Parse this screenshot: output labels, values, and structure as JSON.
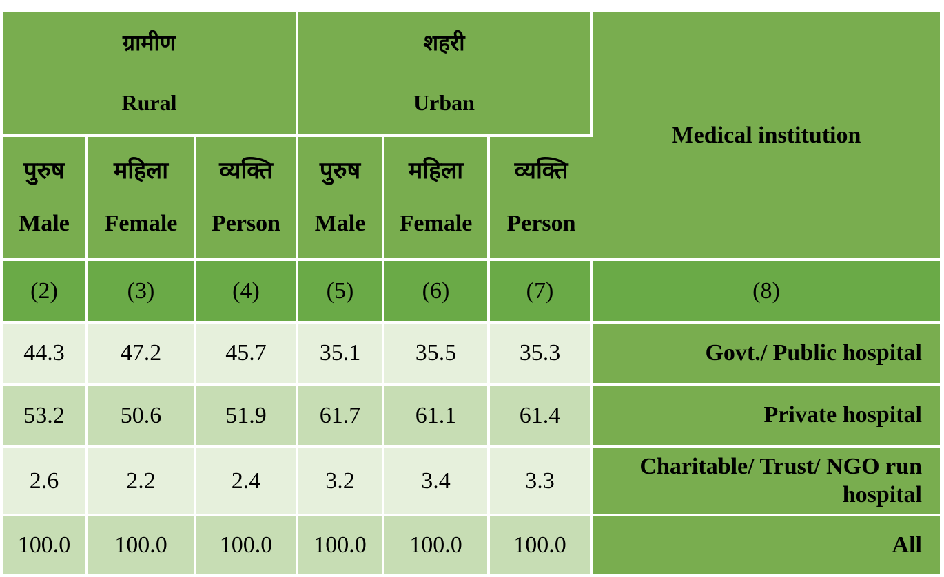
{
  "header": {
    "rural_hi": "ग्रामीण",
    "rural_en": "Rural",
    "urban_hi": "शहरी",
    "urban_en": "Urban",
    "institution": "Medical institution",
    "male_hi": "पुरुष",
    "male_en": "Male",
    "female_hi": "महिला",
    "female_en": "Female",
    "person_hi": "व्यक्ति",
    "person_en": "Person"
  },
  "column_numbers": [
    "(2)",
    "(3)",
    "(4)",
    "(5)",
    "(6)",
    "(7)",
    "(8)"
  ],
  "rows": [
    {
      "values": [
        "44.3",
        "47.2",
        "45.7",
        "35.1",
        "35.5",
        "35.3"
      ],
      "label": "Govt./ Public hospital"
    },
    {
      "values": [
        "53.2",
        "50.6",
        "51.9",
        "61.7",
        "61.1",
        "61.4"
      ],
      "label": "Private hospital"
    },
    {
      "values": [
        "2.6",
        "2.2",
        "2.4",
        "3.2",
        "3.4",
        "3.3"
      ],
      "label": "Charitable/ Trust/ NGO run hospital"
    },
    {
      "values": [
        "100.0",
        "100.0",
        "100.0",
        "100.0",
        "100.0",
        "100.0"
      ],
      "label": "All"
    }
  ],
  "colors": {
    "header_green": "#79ad4f",
    "number_row_green": "#6aaa47",
    "light_cell": "#e6f0dc",
    "mid_cell": "#c7ddb4"
  }
}
